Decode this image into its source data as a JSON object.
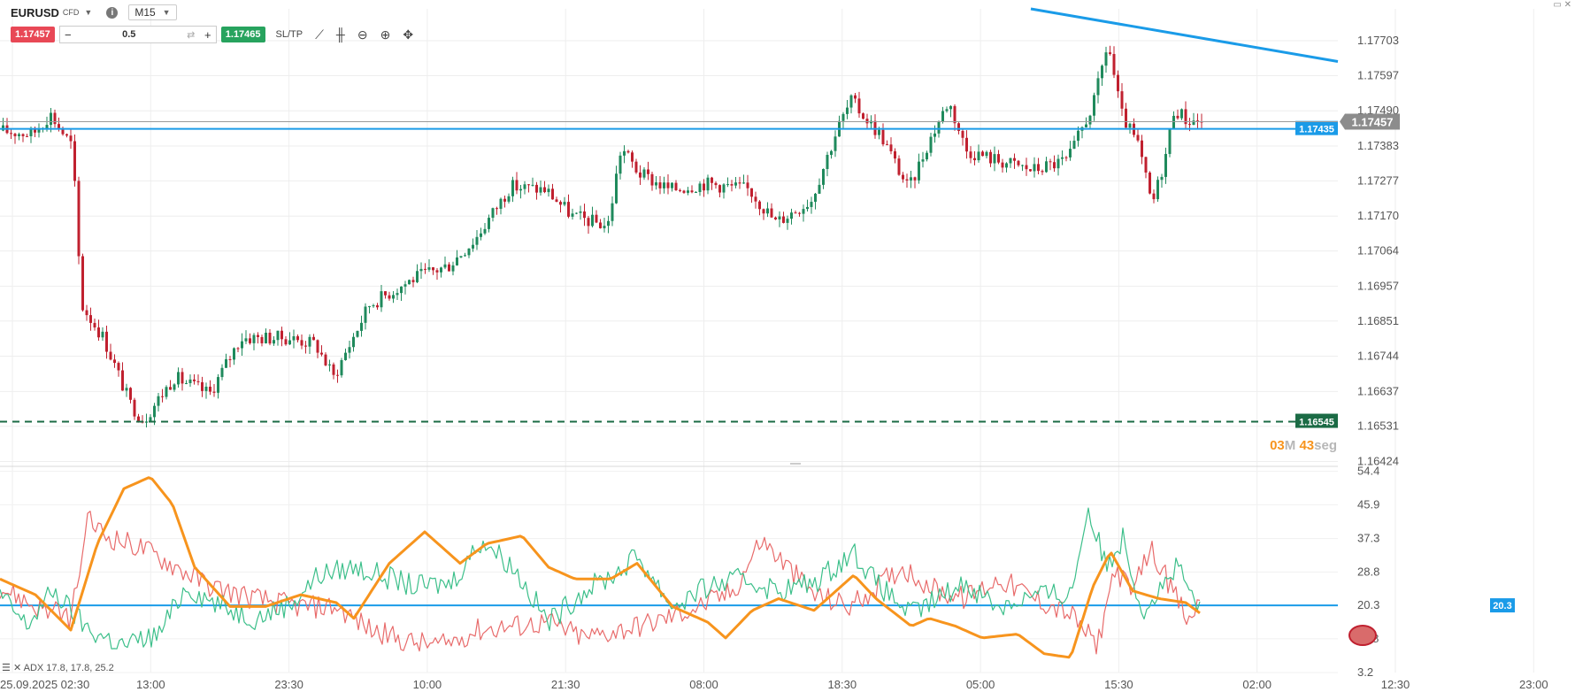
{
  "toolbar": {
    "symbol": "EURUSD",
    "instrument_type": "CFD",
    "timeframe": "M15",
    "sell_price": "1.17457",
    "buy_price": "1.17465",
    "quantity": "0.5",
    "sltp_label": "SL/TP",
    "minus": "−",
    "plus": "+"
  },
  "indicator": {
    "label": "ADX 17.8, 17.8, 25.2"
  },
  "colors": {
    "bull": "#1f8a5c",
    "bear": "#c0202f",
    "trend_line": "#1a9be8",
    "adx": "#f7941d",
    "di_plus": "#3cbf8a",
    "di_minus": "#e86b6b",
    "support_dashed": "#1b6b45"
  },
  "chart_data": [
    {
      "type": "candlestick",
      "symbol": "EURUSD",
      "timeframe": "M15",
      "y_axis": {
        "range": [
          1.1642,
          1.178
        ],
        "ticks": [
          "1.17703",
          "1.17597",
          "1.17490",
          "1.17383",
          "1.17277",
          "1.17170",
          "1.17064",
          "1.16957",
          "1.16851",
          "1.16744",
          "1.16637",
          "1.16531",
          "1.16424"
        ]
      },
      "x_axis": {
        "ticks": [
          "25.09.2025 02:30",
          "13:00",
          "23:30",
          "10:00",
          "21:30",
          "08:00",
          "18:30",
          "05:00",
          "15:30",
          "02:00",
          "12:30",
          "23:00"
        ]
      },
      "price_path": [
        [
          0,
          1.1743
        ],
        [
          40,
          1.1742
        ],
        [
          60,
          1.1748
        ],
        [
          85,
          1.1738
        ],
        [
          95,
          1.169
        ],
        [
          120,
          1.168
        ],
        [
          150,
          1.166
        ],
        [
          165,
          1.1655
        ],
        [
          200,
          1.1668
        ],
        [
          240,
          1.1663
        ],
        [
          275,
          1.168
        ],
        [
          330,
          1.168
        ],
        [
          360,
          1.1678
        ],
        [
          380,
          1.1668
        ],
        [
          420,
          1.169
        ],
        [
          470,
          1.1698
        ],
        [
          510,
          1.1702
        ],
        [
          540,
          1.171
        ],
        [
          580,
          1.1726
        ],
        [
          620,
          1.1725
        ],
        [
          650,
          1.1717
        ],
        [
          690,
          1.1714
        ],
        [
          705,
          1.1738
        ],
        [
          725,
          1.173
        ],
        [
          760,
          1.1725
        ],
        [
          800,
          1.1727
        ],
        [
          850,
          1.1725
        ],
        [
          880,
          1.1715
        ],
        [
          920,
          1.1722
        ],
        [
          950,
          1.1744
        ],
        [
          965,
          1.1752
        ],
        [
          1000,
          1.1741
        ],
        [
          1030,
          1.1725
        ],
        [
          1050,
          1.1738
        ],
        [
          1075,
          1.1752
        ],
        [
          1095,
          1.1737
        ],
        [
          1130,
          1.1734
        ],
        [
          1170,
          1.1731
        ],
        [
          1210,
          1.1734
        ],
        [
          1240,
          1.1752
        ],
        [
          1255,
          1.177
        ],
        [
          1270,
          1.1748
        ],
        [
          1290,
          1.1738
        ],
        [
          1305,
          1.172
        ],
        [
          1320,
          1.1735
        ],
        [
          1330,
          1.175
        ],
        [
          1345,
          1.1746
        ],
        [
          1358,
          1.1746
        ]
      ],
      "horizontal_lines": [
        {
          "label": "1.17435",
          "value": 1.17435,
          "style": "solid",
          "color": "#1a9be8"
        },
        {
          "label": "1.16545",
          "value": 1.16545,
          "style": "dashed",
          "color": "#1b6b45"
        }
      ],
      "current_price": {
        "label": "1.17457",
        "value": 1.17457
      },
      "trend_line": {
        "from": [
          1165,
          1.178
        ],
        "to": [
          1512,
          1.1764
        ]
      },
      "countdown": {
        "minutes": "03",
        "minutes_unit": "M",
        "seconds": "43",
        "seconds_unit": "seg"
      }
    },
    {
      "type": "line",
      "name": "ADX",
      "parameters": "17.8, 17.8, 25.2",
      "y_axis": {
        "range": [
          3.2,
          55.0
        ],
        "ticks": [
          "54.4",
          "45.9",
          "37.3",
          "28.8",
          "20.3",
          "11.8",
          "3.2"
        ]
      },
      "level_line": {
        "label": "20.3",
        "value": 20.3
      },
      "series": [
        {
          "name": "ADX",
          "color": "#f7941d",
          "points": [
            [
              0,
              27
            ],
            [
              40,
              23
            ],
            [
              80,
              14
            ],
            [
              110,
              36
            ],
            [
              140,
              50
            ],
            [
              170,
              53
            ],
            [
              195,
              46
            ],
            [
              220,
              30
            ],
            [
              260,
              20
            ],
            [
              300,
              20
            ],
            [
              340,
              23
            ],
            [
              380,
              21
            ],
            [
              400,
              17
            ],
            [
              440,
              31
            ],
            [
              480,
              39
            ],
            [
              520,
              31
            ],
            [
              550,
              36
            ],
            [
              590,
              38
            ],
            [
              620,
              30
            ],
            [
              650,
              27
            ],
            [
              690,
              27
            ],
            [
              720,
              31
            ],
            [
              760,
              20
            ],
            [
              800,
              16
            ],
            [
              820,
              12
            ],
            [
              850,
              19
            ],
            [
              880,
              22
            ],
            [
              920,
              19
            ],
            [
              965,
              28
            ],
            [
              990,
              22
            ],
            [
              1030,
              15
            ],
            [
              1050,
              17
            ],
            [
              1080,
              15
            ],
            [
              1110,
              12
            ],
            [
              1150,
              13
            ],
            [
              1180,
              8
            ],
            [
              1210,
              7
            ],
            [
              1235,
              25
            ],
            [
              1255,
              34
            ],
            [
              1280,
              24
            ],
            [
              1310,
              22
            ],
            [
              1340,
              21
            ],
            [
              1358,
              18
            ]
          ]
        },
        {
          "name": "DI+",
          "color": "#3cbf8a",
          "points": [
            [
              0,
              23
            ],
            [
              30,
              15
            ],
            [
              60,
              24
            ],
            [
              100,
              14
            ],
            [
              140,
              10
            ],
            [
              180,
              13
            ],
            [
              210,
              25
            ],
            [
              250,
              20
            ],
            [
              290,
              17
            ],
            [
              330,
              21
            ],
            [
              360,
              28
            ],
            [
              400,
              30
            ],
            [
              430,
              28
            ],
            [
              470,
              25
            ],
            [
              510,
              26
            ],
            [
              545,
              37
            ],
            [
              580,
              30
            ],
            [
              620,
              16
            ],
            [
              660,
              24
            ],
            [
              700,
              29
            ],
            [
              720,
              33
            ],
            [
              760,
              20
            ],
            [
              800,
              25
            ],
            [
              840,
              27
            ],
            [
              880,
              24
            ],
            [
              920,
              26
            ],
            [
              965,
              34
            ],
            [
              990,
              26
            ],
            [
              1030,
              18
            ],
            [
              1060,
              22
            ],
            [
              1090,
              26
            ],
            [
              1130,
              20
            ],
            [
              1170,
              23
            ],
            [
              1210,
              23
            ],
            [
              1230,
              45
            ],
            [
              1250,
              30
            ],
            [
              1270,
              38
            ],
            [
              1290,
              19
            ],
            [
              1310,
              24
            ],
            [
              1330,
              30
            ],
            [
              1358,
              18
            ]
          ]
        },
        {
          "name": "DI-",
          "color": "#e86b6b",
          "points": [
            [
              0,
              25
            ],
            [
              40,
              20
            ],
            [
              80,
              17
            ],
            [
              100,
              42
            ],
            [
              120,
              38
            ],
            [
              160,
              35
            ],
            [
              200,
              30
            ],
            [
              240,
              25
            ],
            [
              290,
              22
            ],
            [
              340,
              20
            ],
            [
              380,
              20
            ],
            [
              420,
              14
            ],
            [
              460,
              11
            ],
            [
              500,
              10
            ],
            [
              540,
              14
            ],
            [
              580,
              15
            ],
            [
              620,
              16
            ],
            [
              660,
              12
            ],
            [
              700,
              14
            ],
            [
              740,
              16
            ],
            [
              790,
              20
            ],
            [
              830,
              24
            ],
            [
              860,
              37
            ],
            [
              890,
              30
            ],
            [
              920,
              23
            ],
            [
              960,
              20
            ],
            [
              990,
              25
            ],
            [
              1020,
              30
            ],
            [
              1060,
              24
            ],
            [
              1090,
              22
            ],
            [
              1130,
              27
            ],
            [
              1170,
              22
            ],
            [
              1210,
              18
            ],
            [
              1240,
              10
            ],
            [
              1260,
              30
            ],
            [
              1280,
              23
            ],
            [
              1300,
              35
            ],
            [
              1330,
              22
            ],
            [
              1345,
              15
            ],
            [
              1358,
              25
            ]
          ]
        }
      ]
    }
  ]
}
